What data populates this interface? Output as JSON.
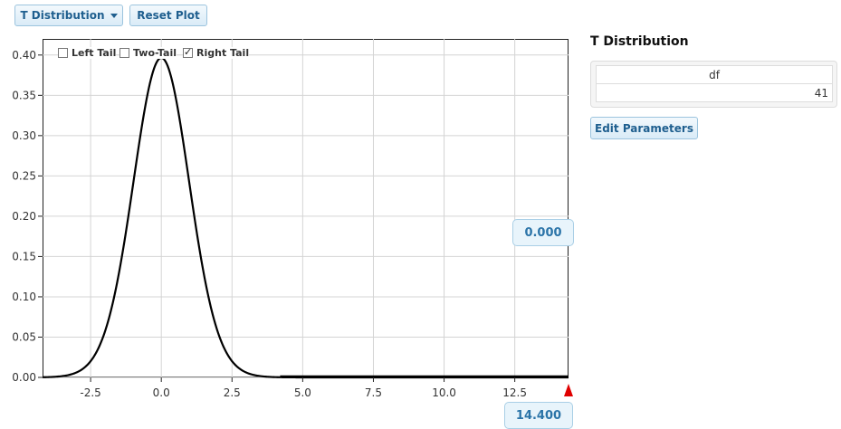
{
  "toolbar": {
    "distribution_label": "T Distribution",
    "reset_label": "Reset Plot"
  },
  "tails": {
    "left_label": "Left Tail",
    "two_label": "Two-Tail",
    "right_label": "Right Tail",
    "left_checked": false,
    "two_checked": false,
    "right_checked": true
  },
  "readouts": {
    "probability": "0.000",
    "cutoff": "14.400"
  },
  "panel": {
    "title": "T Distribution",
    "param_header": "df",
    "param_value": "41",
    "edit_label": "Edit Parameters"
  },
  "colors": {
    "button_text": "#1f5f8f",
    "readout_text": "#2b74a8",
    "marker": "#e00000",
    "curve": "#000000"
  },
  "chart_data": {
    "type": "line",
    "title": "",
    "xlabel": "",
    "ylabel": "",
    "df": 41,
    "xlim": [
      -4.2,
      14.4
    ],
    "ylim": [
      0,
      0.42
    ],
    "xticks": [
      -2.5,
      0.0,
      2.5,
      5.0,
      7.5,
      10.0,
      12.5
    ],
    "xtick_labels": [
      "-2.5",
      "0.0",
      "2.5",
      "5.0",
      "7.5",
      "10.0",
      "12.5"
    ],
    "yticks": [
      0.0,
      0.05,
      0.1,
      0.15,
      0.2,
      0.25,
      0.3,
      0.35,
      0.4
    ],
    "ytick_labels": [
      "0.00",
      "0.05",
      "0.10",
      "0.15",
      "0.20",
      "0.25",
      "0.30",
      "0.35",
      "0.40"
    ],
    "grid": true,
    "series": [
      {
        "x": [
          -4.0,
          -3.5,
          -3.0,
          -2.5,
          -2.0,
          -1.5,
          -1.0,
          -0.5,
          0.0,
          0.5,
          1.0,
          1.5,
          2.0,
          2.5,
          3.0,
          3.5,
          4.0,
          6.0,
          8.0,
          10.0,
          12.0,
          14.4
        ],
        "y": [
          0.0003,
          0.0012,
          0.0052,
          0.0183,
          0.0545,
          0.1282,
          0.2385,
          0.35,
          0.3965,
          0.35,
          0.2385,
          0.1282,
          0.0545,
          0.0183,
          0.0052,
          0.0012,
          0.0003,
          0.0,
          0.0,
          0.0,
          0.0,
          0.0
        ]
      }
    ],
    "cutoff": 14.4,
    "tail_probability": 0.0
  }
}
